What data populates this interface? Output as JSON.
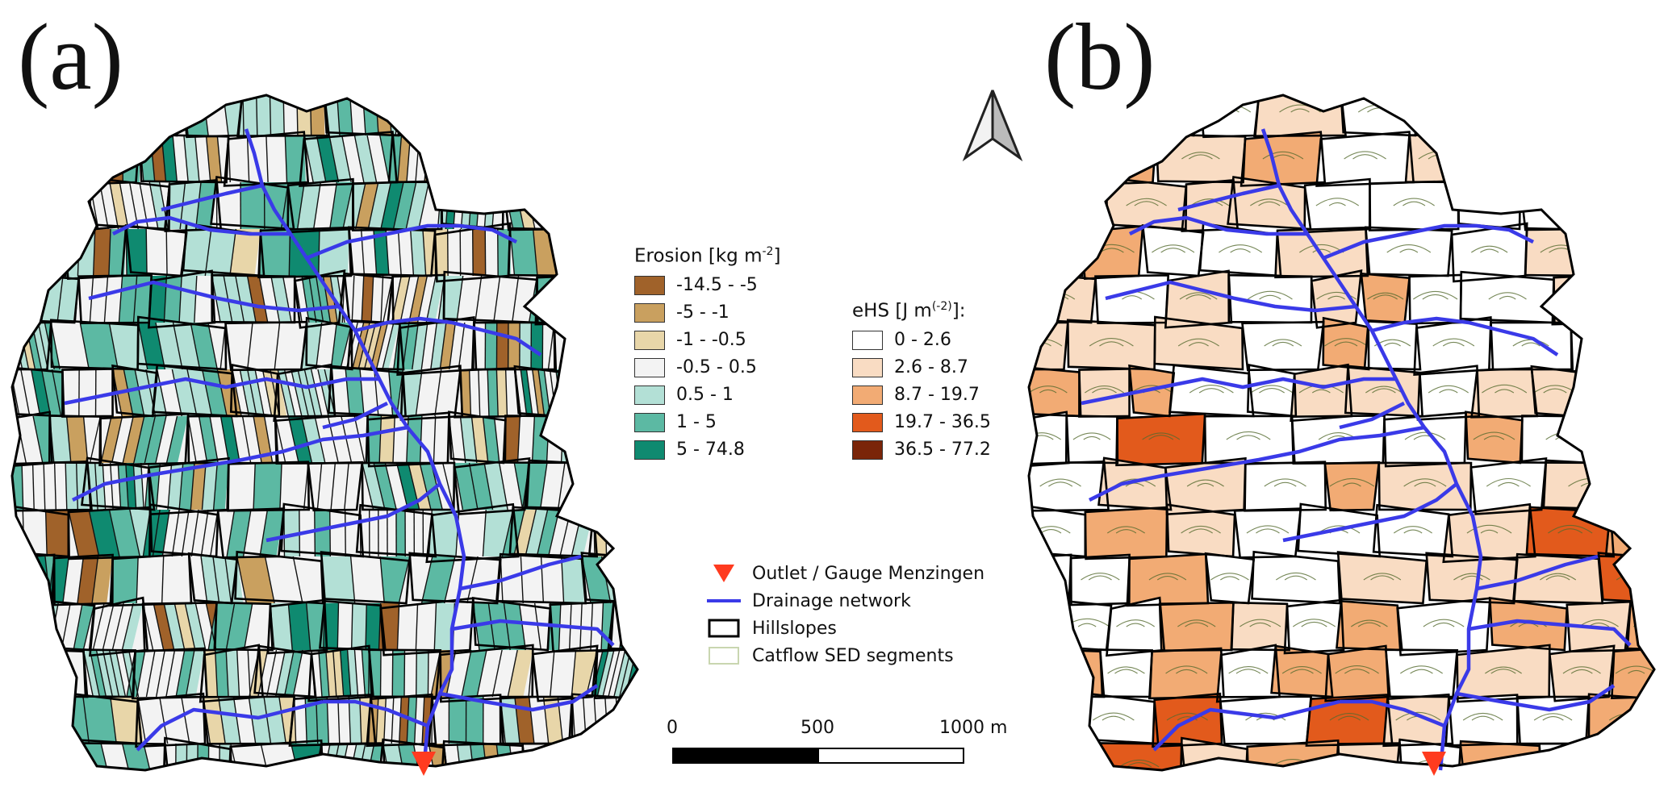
{
  "panels": {
    "a": {
      "label": "(a)"
    },
    "b": {
      "label": "(b)"
    }
  },
  "north_arrow": {
    "icon": "north-arrow-icon"
  },
  "erosion_legend": {
    "title": "Erosion [kg m",
    "title_sup": "-2",
    "title_end": "]",
    "classes": [
      {
        "label": "-14.5 - -5",
        "color": "#a0622a"
      },
      {
        "label": "-5 - -1",
        "color": "#c9a05f"
      },
      {
        "label": "-1 - -0.5",
        "color": "#e8d6a9"
      },
      {
        "label": "-0.5 - 0.5",
        "color": "#f3f3f3"
      },
      {
        "label": "0.5 - 1",
        "color": "#b3e0d6"
      },
      {
        "label": "1 - 5",
        "color": "#5cb9a3"
      },
      {
        "label": "5 - 74.8",
        "color": "#0f8a70"
      }
    ]
  },
  "ehs_legend": {
    "title": "eHS [J m",
    "title_sup": "(-2)",
    "title_end": "]:",
    "classes": [
      {
        "label": "0 - 2.6",
        "color": "#ffffff"
      },
      {
        "label": "2.6 - 8.7",
        "color": "#f9dcc3"
      },
      {
        "label": "8.7 - 19.7",
        "color": "#f2ab74"
      },
      {
        "label": "19.7 - 36.5",
        "color": "#e25a1c"
      },
      {
        "label": "36.5 - 77.2",
        "color": "#7a2509"
      }
    ]
  },
  "features_legend": {
    "items": [
      {
        "label": "Outlet / Gauge Menzingen",
        "icon": "outlet-triangle-icon",
        "color": "#ff3b1f"
      },
      {
        "label": "Drainage network",
        "icon": "drainage-line-icon",
        "color": "#3a3ae8"
      },
      {
        "label": "Hillslopes",
        "icon": "hillslope-box-icon",
        "color": "#000000"
      },
      {
        "label": "Catflow SED segments",
        "icon": "segment-box-icon",
        "color": "#c9d6b0"
      }
    ]
  },
  "scale_bar": {
    "labels": [
      "0",
      "500",
      "1000 m"
    ]
  }
}
